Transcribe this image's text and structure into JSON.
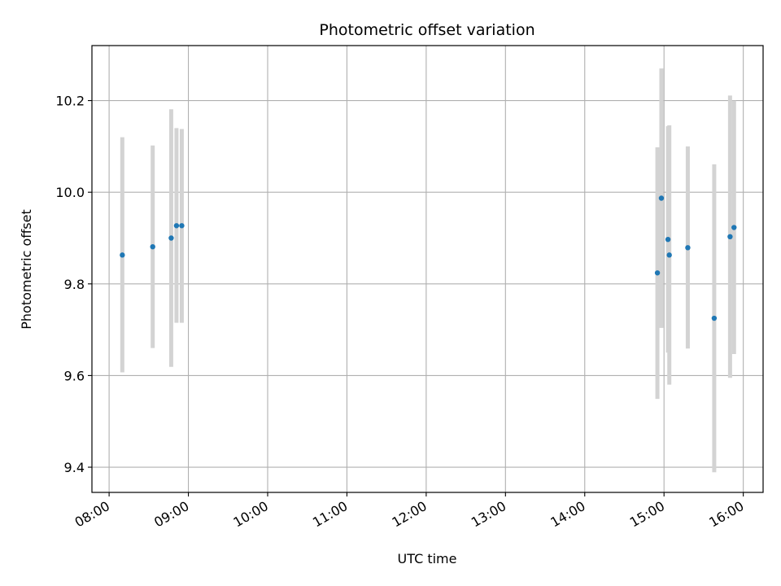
{
  "chart_data": {
    "type": "scatter",
    "title": "Photometric offset variation",
    "xlabel": "UTC time",
    "ylabel": "Photometric offset",
    "x_ticks": [
      "08:00",
      "09:00",
      "10:00",
      "11:00",
      "12:00",
      "13:00",
      "14:00",
      "15:00",
      "16:00"
    ],
    "y_ticks": [
      "9.4",
      "9.6",
      "9.8",
      "10.0",
      "10.2"
    ],
    "xlim": [
      "07:47",
      "16:15"
    ],
    "ylim": [
      9.345,
      10.32
    ],
    "grid": true,
    "error_bar_color": "#d3d3d3",
    "point_color": "#1f77b4",
    "points": [
      {
        "x": "08:10",
        "y": 9.863,
        "err_low": 9.607,
        "err_high": 10.12
      },
      {
        "x": "08:33",
        "y": 9.881,
        "err_low": 9.66,
        "err_high": 10.102
      },
      {
        "x": "08:47",
        "y": 9.9,
        "err_low": 9.619,
        "err_high": 10.181
      },
      {
        "x": "08:51",
        "y": 9.927,
        "err_low": 9.715,
        "err_high": 10.14
      },
      {
        "x": "08:55",
        "y": 9.927,
        "err_low": 9.715,
        "err_high": 10.138
      },
      {
        "x": "14:55",
        "y": 9.824,
        "err_low": 9.549,
        "err_high": 10.098
      },
      {
        "x": "14:58",
        "y": 9.987,
        "err_low": 9.704,
        "err_high": 10.27
      },
      {
        "x": "15:03",
        "y": 9.897,
        "err_low": 9.65,
        "err_high": 10.144
      },
      {
        "x": "15:04",
        "y": 9.863,
        "err_low": 9.58,
        "err_high": 10.146
      },
      {
        "x": "15:18",
        "y": 9.879,
        "err_low": 9.659,
        "err_high": 10.1
      },
      {
        "x": "15:38",
        "y": 9.725,
        "err_low": 9.389,
        "err_high": 10.061
      },
      {
        "x": "15:50",
        "y": 9.903,
        "err_low": 9.595,
        "err_high": 10.211
      },
      {
        "x": "15:53",
        "y": 9.923,
        "err_low": 9.647,
        "err_high": 10.2
      }
    ]
  }
}
